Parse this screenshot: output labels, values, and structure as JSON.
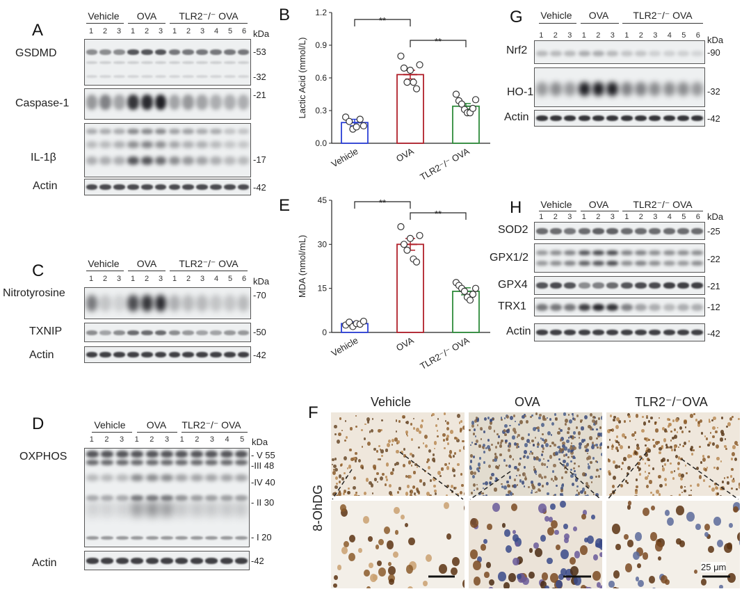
{
  "panels": {
    "A": {
      "letter": "A",
      "groups": [
        "Vehicle",
        "OVA",
        "TLR2⁻/⁻ OVA"
      ],
      "lanes": [
        "1",
        "2",
        "3",
        "1",
        "2",
        "3",
        "1",
        "2",
        "3",
        "4",
        "5",
        "6"
      ],
      "kda_label": "kDa",
      "rows": [
        {
          "name": "GSDMD",
          "markers": [
            "-53",
            "-32"
          ]
        },
        {
          "name": "Caspase-1",
          "markers": [
            "-21"
          ]
        },
        {
          "name": "IL-1β",
          "markers": [
            "-17"
          ]
        },
        {
          "name": "Actin",
          "markers": [
            "-42"
          ]
        }
      ]
    },
    "C": {
      "letter": "C",
      "groups": [
        "Vehicle",
        "OVA",
        "TLR2⁻/⁻ OVA"
      ],
      "lanes": [
        "1",
        "2",
        "3",
        "1",
        "2",
        "3",
        "1",
        "2",
        "3",
        "4",
        "5",
        "6"
      ],
      "kda_label": "kDa",
      "rows": [
        {
          "name": "Nitrotyrosine",
          "markers": [
            "-70"
          ]
        },
        {
          "name": "TXNIP",
          "markers": [
            "-50"
          ]
        },
        {
          "name": "Actin",
          "markers": [
            "-42"
          ]
        }
      ]
    },
    "D": {
      "letter": "D",
      "groups": [
        "Vehicle",
        "OVA",
        "TLR2⁻/⁻ OVA"
      ],
      "lanes": [
        "1",
        "2",
        "3",
        "1",
        "2",
        "3",
        "1",
        "2",
        "3",
        "4",
        "5"
      ],
      "kda_label": "kDa",
      "rows": [
        {
          "name": "OXPHOS",
          "markers": [
            "- V 55",
            "-III 48",
            "-IV 40",
            "- II 30",
            "- I 20"
          ]
        },
        {
          "name": "Actin",
          "markers": [
            "-42"
          ]
        }
      ]
    },
    "G": {
      "letter": "G",
      "groups": [
        "Vehicle",
        "OVA",
        "TLR2⁻/⁻ OVA"
      ],
      "lanes": [
        "1",
        "2",
        "3",
        "1",
        "2",
        "3",
        "1",
        "2",
        "3",
        "4",
        "5",
        "6"
      ],
      "kda_label": "kDa",
      "rows": [
        {
          "name": "Nrf2",
          "markers": [
            "-90"
          ]
        },
        {
          "name": "HO-1",
          "markers": [
            "-32"
          ]
        },
        {
          "name": "Actin",
          "markers": [
            "-42"
          ]
        }
      ]
    },
    "H": {
      "letter": "H",
      "groups": [
        "Vehicle",
        "OVA",
        "TLR2⁻/⁻ OVA"
      ],
      "lanes": [
        "1",
        "2",
        "3",
        "1",
        "2",
        "3",
        "1",
        "2",
        "3",
        "4",
        "5",
        "6"
      ],
      "kda_label": "kDa",
      "rows": [
        {
          "name": "SOD2",
          "markers": [
            "-25"
          ]
        },
        {
          "name": "GPX1/2",
          "markers": [
            "-22"
          ]
        },
        {
          "name": "GPX4",
          "markers": [
            "-21"
          ]
        },
        {
          "name": "TRX1",
          "markers": [
            "-12"
          ]
        },
        {
          "name": "Actin",
          "markers": [
            "-42"
          ]
        }
      ]
    },
    "F": {
      "letter": "F",
      "stain_label": "8-OhDG",
      "columns": [
        "Vehicle",
        "OVA",
        "TLR2⁻/⁻OVA"
      ],
      "scale_bar": "25 μm"
    }
  },
  "chart_data": [
    {
      "panel": "B",
      "type": "bar",
      "title": "",
      "ylabel": "Lactic Acid (mmol/L)",
      "categories": [
        "Vehicle",
        "OVA",
        "TLR2⁻/⁻ OVA"
      ],
      "values": [
        0.19,
        0.63,
        0.34
      ],
      "errors": [
        0.03,
        0.04,
        0.025
      ],
      "points": [
        [
          0.24,
          0.2,
          0.13,
          0.15,
          0.22,
          0.16
        ],
        [
          0.8,
          0.69,
          0.56,
          0.67,
          0.56,
          0.5,
          0.72
        ],
        [
          0.45,
          0.39,
          0.36,
          0.31,
          0.28,
          0.28,
          0.32,
          0.4
        ]
      ],
      "ylim": [
        0,
        1.2
      ],
      "yticks": [
        "0.0",
        "0.3",
        "0.6",
        "0.9",
        "1.2"
      ],
      "significance": [
        {
          "from": 0,
          "to": 1,
          "label": "**"
        },
        {
          "from": 1,
          "to": 2,
          "label": "**"
        }
      ],
      "colors": [
        "#2a3fd6",
        "#b0202a",
        "#2d8a3a"
      ]
    },
    {
      "panel": "E",
      "type": "bar",
      "title": "",
      "ylabel": "MDA (nmol/mL)",
      "categories": [
        "Vehicle",
        "OVA",
        "TLR2⁻/⁻ OVA"
      ],
      "values": [
        3,
        30,
        14
      ],
      "errors": [
        0.6,
        2.0,
        1.2
      ],
      "points": [
        [
          2.5,
          3.5,
          2.0,
          3.0,
          2.8,
          3.8
        ],
        [
          36,
          30,
          28,
          32,
          25,
          24,
          33
        ],
        [
          17,
          16,
          15,
          14,
          12,
          11,
          13,
          15
        ]
      ],
      "ylim": [
        0,
        45
      ],
      "yticks": [
        "0",
        "15",
        "30",
        "45"
      ],
      "significance": [
        {
          "from": 0,
          "to": 1,
          "label": "**"
        },
        {
          "from": 1,
          "to": 2,
          "label": "**"
        }
      ],
      "colors": [
        "#2a3fd6",
        "#b0202a",
        "#2d8a3a"
      ]
    }
  ]
}
